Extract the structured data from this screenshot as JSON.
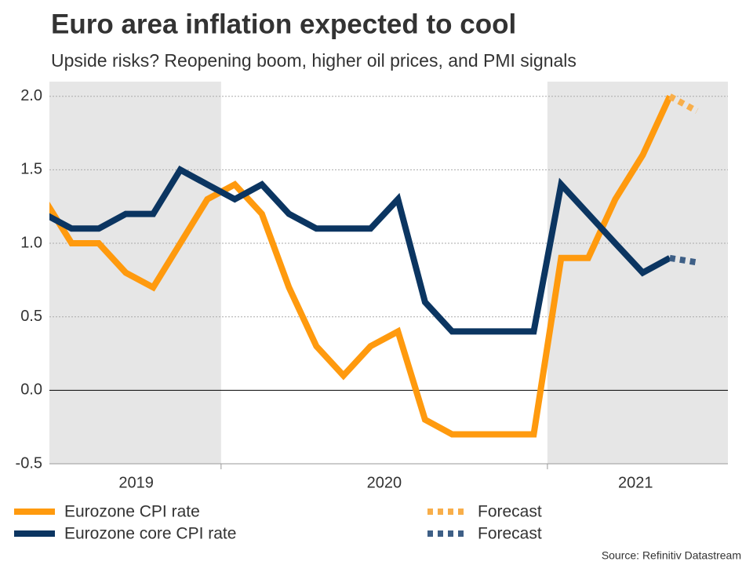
{
  "chart_data": {
    "type": "line",
    "title": "Euro area inflation expected to cool",
    "subtitle": "Upside risks? Reopening boom, higher oil prices, and PMI signals",
    "source": "Source: Refinitiv Datastream",
    "xlim": [
      2019.474,
      2021.553
    ],
    "xticks": [
      {
        "value": 2019.74,
        "label": "2019"
      },
      {
        "value": 2020.5,
        "label": "2020"
      },
      {
        "value": 2021.27,
        "label": "2021"
      }
    ],
    "ylim": [
      -0.5,
      2.1
    ],
    "yticks": [
      {
        "value": -0.5,
        "label": "-0.5"
      },
      {
        "value": 0,
        "label": "0.0"
      },
      {
        "value": 0.5,
        "label": "0.5"
      },
      {
        "value": 1,
        "label": "1.0"
      },
      {
        "value": 1.5,
        "label": "1.5"
      },
      {
        "value": 2,
        "label": "2.0"
      }
    ],
    "grid": true,
    "shaded": [
      [
        2019.474,
        2020
      ],
      [
        2021,
        2021.553
      ]
    ],
    "series": [
      {
        "name": "Eurozone CPI rate",
        "color": "#ff9a0e",
        "style": "solid",
        "x": [
          2019.458,
          2019.542,
          2019.625,
          2019.708,
          2019.792,
          2019.875,
          2019.958,
          2020.042,
          2020.125,
          2020.208,
          2020.292,
          2020.375,
          2020.458,
          2020.542,
          2020.625,
          2020.708,
          2020.792,
          2020.875,
          2020.958,
          2021.042,
          2021.125,
          2021.208,
          2021.292,
          2021.375
        ],
        "values": [
          1.3,
          1.0,
          1.0,
          0.8,
          0.7,
          1.0,
          1.3,
          1.4,
          1.2,
          0.7,
          0.3,
          0.1,
          0.3,
          0.4,
          -0.2,
          -0.3,
          -0.3,
          -0.3,
          -0.3,
          0.9,
          0.9,
          1.3,
          1.6,
          2.0
        ]
      },
      {
        "name": "Eurozone core CPI rate",
        "color": "#0b3561",
        "style": "solid",
        "x": [
          2019.458,
          2019.542,
          2019.625,
          2019.708,
          2019.792,
          2019.875,
          2019.958,
          2020.042,
          2020.125,
          2020.208,
          2020.292,
          2020.375,
          2020.458,
          2020.542,
          2020.625,
          2020.708,
          2020.792,
          2020.875,
          2020.958,
          2021.042,
          2021.125,
          2021.208,
          2021.292,
          2021.375
        ],
        "values": [
          1.2,
          1.1,
          1.1,
          1.2,
          1.2,
          1.5,
          1.4,
          1.3,
          1.4,
          1.2,
          1.1,
          1.1,
          1.1,
          1.3,
          0.6,
          0.4,
          0.4,
          0.4,
          0.4,
          1.4,
          1.2,
          1.0,
          0.8,
          0.9
        ]
      },
      {
        "name": "Forecast",
        "color": "#f8ae4a",
        "style": "dotted",
        "x": [
          2021.375,
          2021.458
        ],
        "values": [
          2.0,
          1.9
        ]
      },
      {
        "name": "Forecast",
        "color": "#3e5f86",
        "style": "dotted",
        "x": [
          2021.375,
          2021.458
        ],
        "values": [
          0.9,
          0.87
        ]
      }
    ]
  }
}
